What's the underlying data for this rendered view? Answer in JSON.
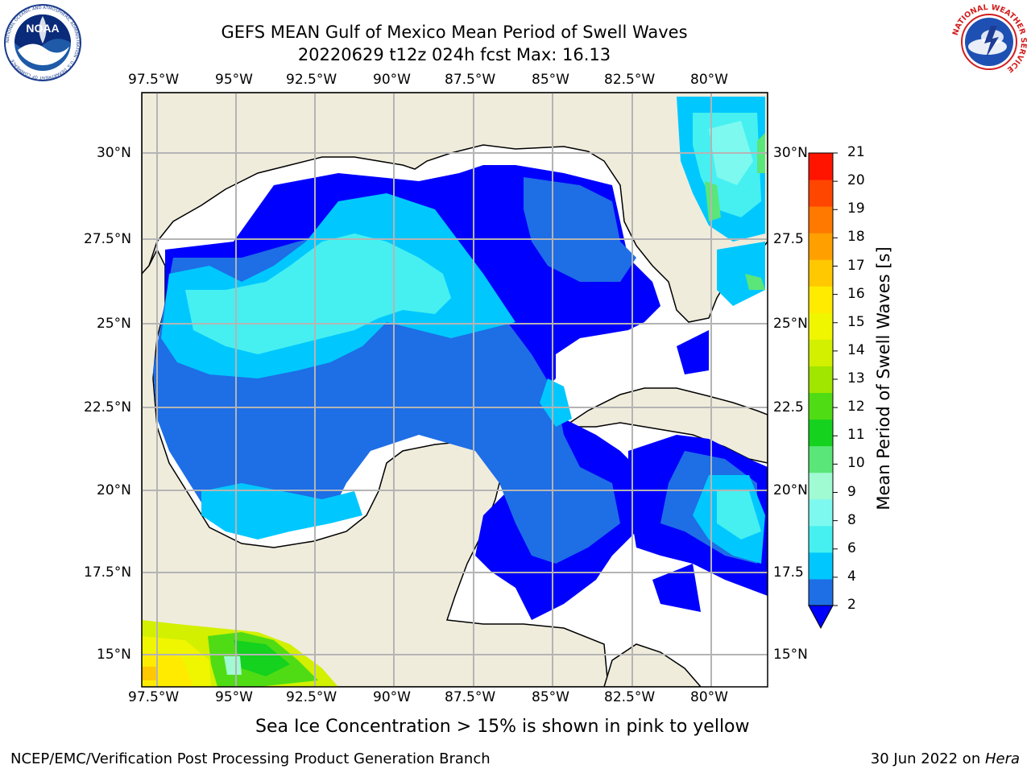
{
  "title": {
    "line1": "GEFS MEAN Gulf of Mexico Mean Period of Swell Waves",
    "line2": "20220629 t12z 024h fcst   Max: 16.13"
  },
  "axes": {
    "lon_labels": [
      "97.5°W",
      "95°W",
      "92.5°W",
      "90°W",
      "87.5°W",
      "85°W",
      "82.5°W",
      "80°W"
    ],
    "lat_labels_left": [
      "30°N",
      "27.5°N",
      "25°N",
      "22.5°N",
      "20°N",
      "17.5°N",
      "15°N"
    ],
    "lat_labels_right": [
      "30°N",
      "27.5",
      "25°N",
      "22.5",
      "20°N",
      "17.5",
      "15°N"
    ]
  },
  "colorbar": {
    "label": "Mean Period of Swell Waves [s]",
    "ticks": [
      "2",
      "4",
      "6",
      "8",
      "9",
      "10",
      "11",
      "12",
      "13",
      "14",
      "15",
      "16",
      "17",
      "18",
      "19",
      "20",
      "21"
    ],
    "colors": [
      "#1e6ee6",
      "#00c8ff",
      "#46f0f0",
      "#7df9f0",
      "#a0fad2",
      "#5ae678",
      "#14d21e",
      "#50dc14",
      "#a0e600",
      "#d2f000",
      "#f0f500",
      "#ffeb00",
      "#ffc800",
      "#ffa000",
      "#ff7800",
      "#ff4600",
      "#ff1400"
    ],
    "under_color": "#0000ff"
  },
  "caption": "Sea Ice Concentration > 15% is shown in pink to yellow",
  "footer": {
    "left": "NCEP/EMC/Verification Post Processing Product Generation Branch",
    "right_date": "30 Jun 2022 on ",
    "right_host": "Hera"
  },
  "logos": {
    "noaa": "NOAA",
    "noaa_ring": "NATIONAL OCEANIC AND ATMOSPHERIC ADMINISTRATION · U.S. DEPARTMENT OF COMMERCE",
    "nws_ring": "NATIONAL WEATHER SERVICE"
  }
}
